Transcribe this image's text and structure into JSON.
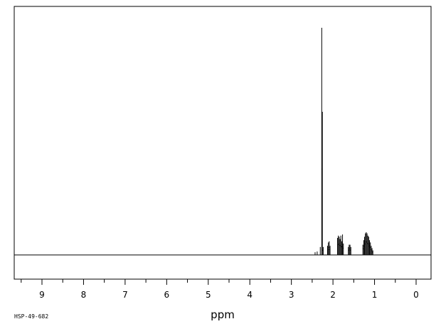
{
  "chart_data": {
    "type": "line",
    "title": "",
    "xlabel": "ppm",
    "ylabel": "",
    "code": "HSP-49-682",
    "xlim": [
      9.6,
      -0.3
    ],
    "ylim": [
      -0.12,
      1.0
    ],
    "reversed_x": true,
    "grid": false,
    "legend": "none",
    "colors": {
      "line": "#000000",
      "frame": "#000000",
      "background": "#ffffff"
    },
    "major_ticks": [
      9,
      8,
      7,
      6,
      5,
      4,
      3,
      2,
      1,
      0
    ],
    "tick_labels": [
      "9",
      "8",
      "7",
      "6",
      "5",
      "4",
      "3",
      "2",
      "1",
      "0"
    ],
    "minor_tick_step": 0.5,
    "series": [
      {
        "baseline": 0,
        "peaks": [
          {
            "x": 2.43,
            "y": 0.012
          },
          {
            "x": 2.38,
            "y": 0.015
          },
          {
            "x": 2.305,
            "y": 0.035
          },
          {
            "x": 2.27,
            "y": 1.0
          },
          {
            "x": 2.255,
            "y": 0.63
          },
          {
            "x": 2.235,
            "y": 0.035
          },
          {
            "x": 2.13,
            "y": 0.04
          },
          {
            "x": 2.11,
            "y": 0.055
          },
          {
            "x": 2.09,
            "y": 0.06
          },
          {
            "x": 2.07,
            "y": 0.04
          },
          {
            "x": 1.89,
            "y": 0.075
          },
          {
            "x": 1.87,
            "y": 0.085
          },
          {
            "x": 1.85,
            "y": 0.08
          },
          {
            "x": 1.83,
            "y": 0.07
          },
          {
            "x": 1.81,
            "y": 0.085
          },
          {
            "x": 1.79,
            "y": 0.06
          },
          {
            "x": 1.77,
            "y": 0.09
          },
          {
            "x": 1.75,
            "y": 0.05
          },
          {
            "x": 1.63,
            "y": 0.035
          },
          {
            "x": 1.61,
            "y": 0.045
          },
          {
            "x": 1.59,
            "y": 0.045
          },
          {
            "x": 1.57,
            "y": 0.035
          },
          {
            "x": 1.28,
            "y": 0.045
          },
          {
            "x": 1.26,
            "y": 0.065
          },
          {
            "x": 1.24,
            "y": 0.08
          },
          {
            "x": 1.22,
            "y": 0.095
          },
          {
            "x": 1.2,
            "y": 0.1
          },
          {
            "x": 1.18,
            "y": 0.095
          },
          {
            "x": 1.16,
            "y": 0.085
          },
          {
            "x": 1.14,
            "y": 0.08
          },
          {
            "x": 1.12,
            "y": 0.065
          },
          {
            "x": 1.1,
            "y": 0.055
          },
          {
            "x": 1.08,
            "y": 0.04
          },
          {
            "x": 1.06,
            "y": 0.03
          },
          {
            "x": 1.04,
            "y": 0.02
          }
        ]
      }
    ]
  }
}
